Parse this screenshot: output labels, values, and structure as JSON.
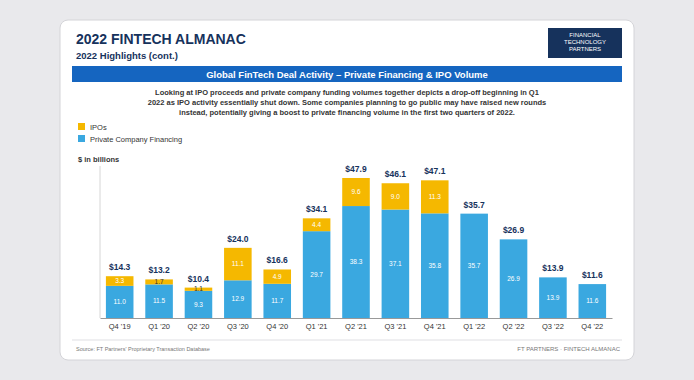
{
  "chart_data": {
    "type": "bar",
    "header": "2022 FINTECH ALMANAC",
    "header_subtitle": "2022 Highlights (cont.)",
    "logo": "FINANCIAL TECHNOLOGY PARTNERS",
    "title": "Global FinTech Deal Activity – Private Financing & IPO Volume",
    "description": [
      "Looking at IPO proceeds and private company funding volumes together depicts a drop-off beginning in Q1",
      "2022 as IPO activity essentially shut down. Some companies planning to go public may have raised new rounds",
      "instead, potentially giving a boost to private financing volume in the first two quarters of 2022."
    ],
    "unit_label": "$ in billions",
    "source": "Source: FT Partners' Proprietary Transaction Database",
    "footer": "FT PARTNERS · FINTECH ALMANAC",
    "categories": [
      "Q4 '19",
      "Q1 '20",
      "Q2 '20",
      "Q3 '20",
      "Q4 '20",
      "Q1 '21",
      "Q2 '21",
      "Q3 '21",
      "Q4 '21",
      "Q1 '22",
      "Q2 '22",
      "Q3 '22",
      "Q4 '22"
    ],
    "series": [
      {
        "name": "Private Company Financing",
        "color": "#3aa8e0",
        "values": [
          11.0,
          11.5,
          9.3,
          12.9,
          11.7,
          29.7,
          38.3,
          37.1,
          35.8,
          35.7,
          26.9,
          13.9,
          11.6
        ],
        "value_labels": [
          "11.0",
          "11.5",
          "9.3",
          "12.9",
          "11.7",
          "29.7",
          "38.3",
          "37.1",
          "35.8",
          "35.7",
          "26.9",
          "13.9",
          "11.6"
        ]
      },
      {
        "name": "IPOs",
        "color": "#f5b800",
        "values": [
          3.3,
          1.7,
          1.1,
          11.1,
          4.9,
          4.4,
          9.6,
          9.0,
          11.3,
          null,
          null,
          null,
          null
        ],
        "value_labels": [
          "3.3",
          "1.7",
          "1.1",
          "11.1",
          "4.9",
          "4.4",
          "9.6",
          "9.0",
          "11.3",
          null,
          null,
          null,
          null
        ]
      }
    ],
    "totals": [
      14.3,
      13.2,
      10.4,
      24.0,
      16.6,
      34.1,
      47.9,
      46.1,
      47.1,
      35.7,
      26.9,
      13.9,
      11.6
    ],
    "total_labels": [
      "$14.3",
      "$13.2",
      "$10.4",
      "$24.0",
      "$16.6",
      "$34.1",
      "$47.9",
      "$46.1",
      "$47.1",
      "$35.7",
      "$26.9",
      "$13.9",
      "$11.6"
    ],
    "ylim": [
      0,
      52
    ],
    "stacked": true,
    "data_labels": true,
    "tick_labels": "x",
    "legend": "top-left",
    "grid": false
  }
}
